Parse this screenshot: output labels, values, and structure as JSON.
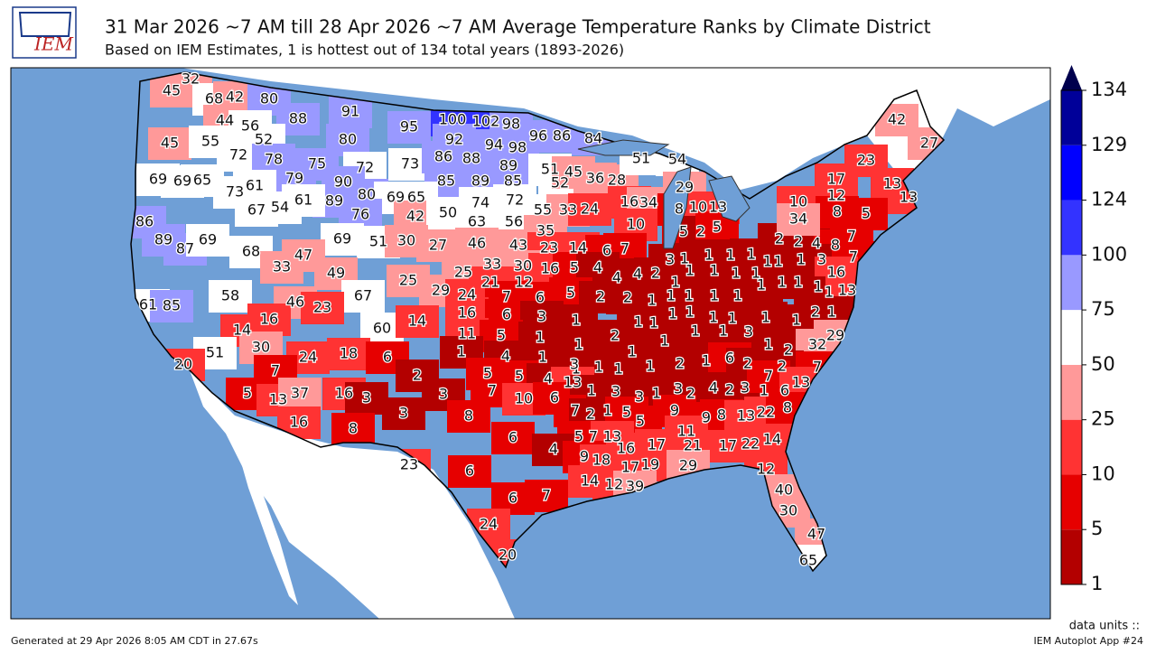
{
  "logo": "IEM",
  "title": "31 Mar 2026 ~7 AM till 28 Apr 2026 ~7 AM Average Temperature Ranks by Climate District",
  "subtitle": "Based on IEM Estimates, 1 is hottest out of 134 total years (1893-2026)",
  "footer_left": "Generated at 29 Apr 2026 8:05 AM CDT in 27.67s",
  "footer_units": "data units ::",
  "footer_app": "IEM Autoplot App #24",
  "colorbar": {
    "ticks": [
      1,
      5,
      10,
      25,
      50,
      75,
      100,
      124,
      129,
      134
    ],
    "colors": [
      "#b30000",
      "#e60000",
      "#ff3333",
      "#ff9999",
      "#ffffff",
      "#9999ff",
      "#3333ff",
      "#0000ff",
      "#000099"
    ],
    "extend_color": "#00004d"
  },
  "district_ranks": [
    45,
    32,
    68,
    42,
    80,
    44,
    56,
    88,
    91,
    95,
    100,
    102,
    98,
    45,
    55,
    52,
    80,
    92,
    94,
    98,
    96,
    86,
    84,
    72,
    78,
    75,
    72,
    73,
    86,
    88,
    89,
    69,
    69,
    65,
    79,
    90,
    85,
    89,
    85,
    52,
    51,
    45,
    36,
    28,
    51,
    54,
    73,
    61,
    89,
    80,
    69,
    65,
    74,
    72,
    29,
    67,
    54,
    61,
    76,
    42,
    50,
    63,
    56,
    55,
    33,
    24,
    16,
    34,
    8,
    10,
    13,
    86,
    89,
    87,
    69,
    68,
    69,
    51,
    30,
    27,
    46,
    43,
    35,
    23,
    14,
    10,
    6,
    7,
    5,
    2,
    5,
    33,
    47,
    49,
    25,
    33,
    30,
    25,
    16,
    5,
    4,
    3,
    1,
    1,
    1,
    1,
    1,
    2,
    2,
    4,
    8,
    7,
    58,
    67,
    29,
    21,
    12,
    24,
    7,
    6,
    5,
    4,
    4,
    2,
    1,
    1,
    1,
    1,
    1,
    1,
    1,
    3,
    7,
    61,
    85,
    46,
    23,
    16,
    6,
    3,
    1,
    2,
    2,
    1,
    1,
    1,
    1,
    1,
    1,
    1,
    1,
    1,
    16,
    1,
    13,
    16,
    60,
    14,
    11,
    5,
    1,
    1,
    2,
    1,
    1,
    1,
    1,
    1,
    1,
    1,
    1,
    2,
    1,
    29,
    14,
    30,
    24,
    18,
    6,
    1,
    4,
    1,
    1,
    1,
    1,
    1,
    1,
    3,
    1,
    2,
    32,
    51,
    20,
    7,
    2,
    5,
    5,
    4,
    3,
    1,
    1,
    1,
    2,
    1,
    6,
    2,
    2,
    7,
    13,
    5,
    13,
    37,
    16,
    3,
    3,
    7,
    10,
    6,
    1,
    3,
    3,
    1,
    3,
    2,
    4,
    2,
    3,
    1,
    7,
    6,
    13,
    3,
    8,
    7,
    2,
    1,
    5,
    5,
    9,
    9,
    8,
    13,
    22,
    8,
    16,
    8,
    6,
    5,
    7,
    13,
    11,
    16,
    17,
    21,
    17,
    22,
    14,
    23,
    6,
    4,
    9,
    18,
    17,
    19,
    29,
    12,
    6,
    7,
    14,
    12,
    39,
    40,
    30,
    24,
    47,
    20,
    65,
    42,
    27,
    23,
    17,
    13,
    12,
    13,
    10,
    8,
    5,
    34
  ]
}
